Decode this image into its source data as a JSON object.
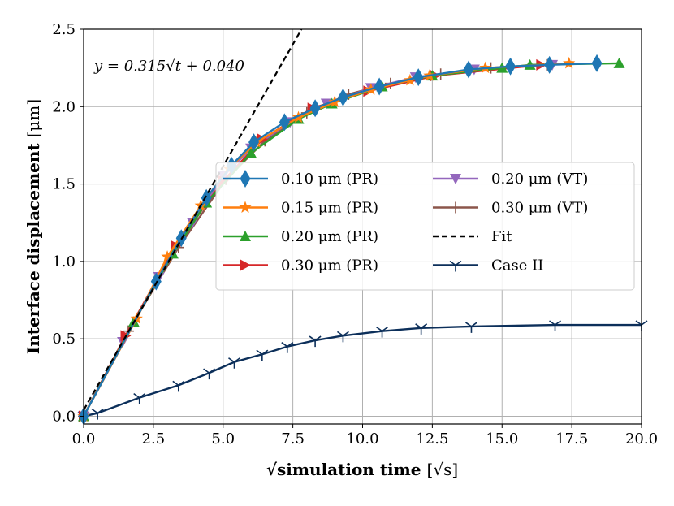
{
  "chart_data": {
    "type": "line",
    "title": "",
    "xlabel": "simulation time",
    "xlabel_unit": "[√s]",
    "ylabel": "Interface displacement",
    "ylabel_unit": "[μm]",
    "xlim": [
      0,
      20
    ],
    "ylim": [
      -0.05,
      2.5
    ],
    "xticks": [
      "0.0",
      "2.5",
      "5.0",
      "7.5",
      "10.0",
      "12.5",
      "15.0",
      "17.5",
      "20.0"
    ],
    "yticks": [
      "0.0",
      "0.5",
      "1.0",
      "1.5",
      "2.0",
      "2.5"
    ],
    "grid": true,
    "legend_position": "center",
    "annotation": "y = 0.315√t + 0.040",
    "series": [
      {
        "name": "0.10 μm (PR)",
        "color": "#1f77b4",
        "marker": "diamond",
        "x": [
          0,
          2.6,
          3.5,
          4.4,
          5.3,
          6.1,
          7.2,
          8.3,
          9.3,
          10.6,
          12.0,
          13.8,
          15.3,
          16.7,
          18.4
        ],
        "y": [
          0,
          0.87,
          1.15,
          1.41,
          1.62,
          1.77,
          1.9,
          1.99,
          2.06,
          2.13,
          2.19,
          2.24,
          2.26,
          2.27,
          2.28
        ]
      },
      {
        "name": "0.15 μm (PR)",
        "color": "#ff7f0e",
        "marker": "star",
        "x": [
          0,
          1.9,
          3.0,
          4.2,
          5.2,
          6.2,
          7.7,
          9.0,
          10.3,
          11.7,
          12.4,
          14.4,
          17.4
        ],
        "y": [
          0,
          0.63,
          1.03,
          1.36,
          1.6,
          1.77,
          1.93,
          2.03,
          2.11,
          2.17,
          2.2,
          2.25,
          2.28
        ]
      },
      {
        "name": "0.20 μm (PR)",
        "color": "#2ca02c",
        "marker": "triangle-up",
        "x": [
          0,
          1.8,
          3.2,
          4.4,
          6.0,
          7.7,
          8.9,
          10.7,
          12.5,
          15.0,
          16.0,
          19.2
        ],
        "y": [
          0,
          0.61,
          1.05,
          1.38,
          1.7,
          1.92,
          2.02,
          2.13,
          2.2,
          2.25,
          2.27,
          2.28
        ]
      },
      {
        "name": "0.30 μm (PR)",
        "color": "#d62728",
        "marker": "triangle-right",
        "x": [
          0,
          1.5,
          3.3,
          5.0,
          6.4,
          8.2,
          10.2,
          12.6,
          16.4
        ],
        "y": [
          0,
          0.52,
          1.1,
          1.52,
          1.79,
          1.99,
          2.1,
          2.2,
          2.27
        ]
      },
      {
        "name": "0.20 μm (VT)",
        "color": "#9467bd",
        "marker": "triangle-down",
        "x": [
          0,
          1.4,
          2.7,
          3.9,
          5.0,
          6.0,
          7.4,
          8.7,
          10.3,
          11.9,
          14.0,
          16.8
        ],
        "y": [
          0,
          0.48,
          0.9,
          1.25,
          1.55,
          1.73,
          1.9,
          2.02,
          2.12,
          2.19,
          2.24,
          2.27
        ]
      },
      {
        "name": "0.30 μm (VT)",
        "color": "#8c564b",
        "marker": "plus",
        "x": [
          0,
          1.6,
          3.4,
          5.1,
          6.5,
          8.0,
          9.5,
          11.0,
          12.8,
          14.6,
          16.6
        ],
        "y": [
          0,
          0.55,
          1.09,
          1.53,
          1.78,
          1.96,
          2.08,
          2.15,
          2.21,
          2.25,
          2.27
        ]
      },
      {
        "name": "Fit",
        "color": "#000000",
        "marker": "none",
        "dashed": true,
        "x": [
          0,
          7.81
        ],
        "y": [
          0.04,
          2.5
        ]
      },
      {
        "name": "Case II",
        "color": "#0c2f5a",
        "marker": "tri-down",
        "x": [
          0,
          0.5,
          2.0,
          3.4,
          4.5,
          5.4,
          6.4,
          7.3,
          8.3,
          9.3,
          10.7,
          12.1,
          13.9,
          16.9,
          20.0
        ],
        "y": [
          0,
          0.02,
          0.12,
          0.2,
          0.28,
          0.35,
          0.4,
          0.45,
          0.49,
          0.52,
          0.55,
          0.57,
          0.58,
          0.59,
          0.59
        ]
      }
    ]
  }
}
